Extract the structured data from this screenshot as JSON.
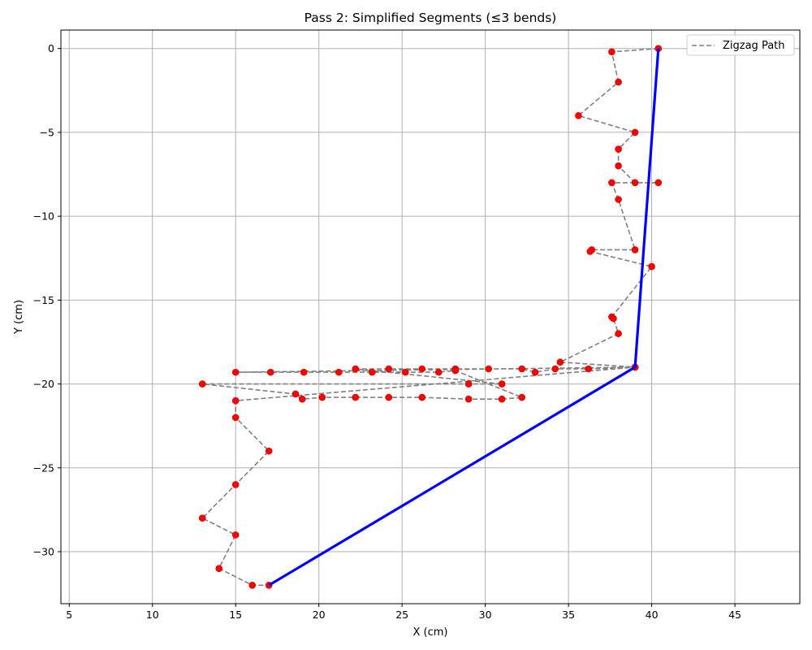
{
  "chart_data": {
    "type": "line",
    "title": "Pass 2: Simplified Segments (≤3 bends)",
    "xlabel": "X (cm)",
    "ylabel": "Y (cm)",
    "xlim": [
      4.5,
      48.9
    ],
    "ylim": [
      -33.1,
      1.1
    ],
    "xticks": [
      5,
      10,
      15,
      20,
      25,
      30,
      35,
      40,
      45
    ],
    "yticks": [
      0,
      -5,
      -10,
      -15,
      -20,
      -25,
      -30
    ],
    "xtick_labels": [
      "5",
      "10",
      "15",
      "20",
      "25",
      "30",
      "35",
      "40",
      "45"
    ],
    "ytick_labels": [
      "0",
      "−5",
      "−10",
      "−15",
      "−20",
      "−25",
      "−30"
    ],
    "grid": true,
    "legend_position": "top-right",
    "series": [
      {
        "name": "Zigzag Path",
        "style": "dashed",
        "color": "#808080",
        "marker_color": "#ff0000",
        "x": [
          40.4,
          37.6,
          38.0,
          35.6,
          39.0,
          38.0,
          38.0,
          39.0,
          40.4,
          37.6,
          38.0,
          39.0,
          36.4,
          36.3,
          40.0,
          37.6,
          37.7,
          38.0,
          34.5,
          39.0,
          36.2,
          34.2,
          33.0,
          32.2,
          30.2,
          28.2,
          26.2,
          24.2,
          22.2,
          31.0,
          29.0,
          13.0,
          18.6,
          19.0,
          20.2,
          22.2,
          24.2,
          26.2,
          29.0,
          31.0,
          32.2,
          28.2,
          27.2,
          25.2,
          23.2,
          21.2,
          19.1,
          17.1,
          15.0,
          39.0,
          15.0,
          15.0,
          17.0,
          15.0,
          13.0,
          15.0,
          14.0,
          16.0,
          17.0
        ],
        "y": [
          0.0,
          -0.2,
          -2.0,
          -4.0,
          -5.0,
          -6.0,
          -7.0,
          -8.0,
          -8.0,
          -8.0,
          -9.0,
          -12.0,
          -12.0,
          -12.1,
          -13.0,
          -16.0,
          -16.1,
          -17.0,
          -18.7,
          -19.0,
          -19.1,
          -19.1,
          -19.3,
          -19.1,
          -19.1,
          -19.1,
          -19.1,
          -19.1,
          -19.1,
          -20.0,
          -20.0,
          -20.0,
          -20.6,
          -20.9,
          -20.8,
          -20.8,
          -20.8,
          -20.8,
          -20.9,
          -20.9,
          -20.8,
          -19.2,
          -19.3,
          -19.3,
          -19.3,
          -19.3,
          -19.3,
          -19.3,
          -19.3,
          -19.0,
          -21.0,
          -22.0,
          -24.0,
          -26.0,
          -28.0,
          -29.0,
          -31.0,
          -32.0,
          -32.0
        ]
      },
      {
        "name": "",
        "style": "solid",
        "color": "#0000ff",
        "x": [
          40.4,
          39.0,
          17.0
        ],
        "y": [
          0.0,
          -19.0,
          -32.0
        ]
      }
    ]
  }
}
